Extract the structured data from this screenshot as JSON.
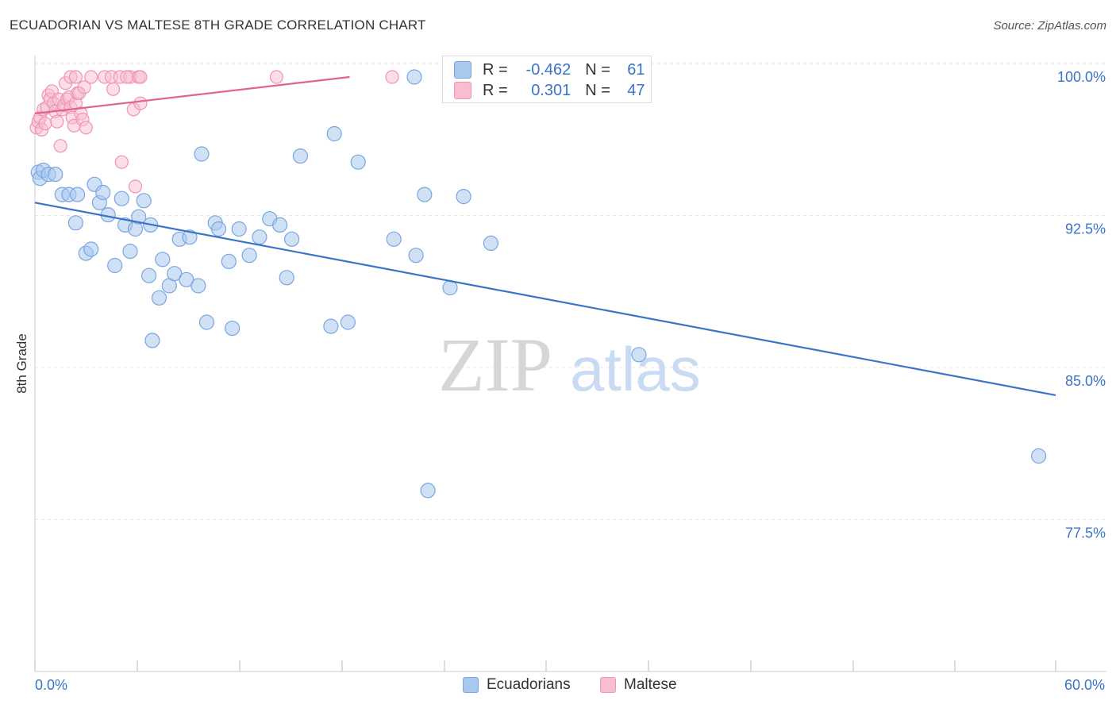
{
  "title": "ECUADORIAN VS MALTESE 8TH GRADE CORRELATION CHART",
  "source": "Source: ZipAtlas.com",
  "watermark": {
    "zip": "ZIP",
    "atlas": "atlas"
  },
  "chart_data": {
    "type": "scatter",
    "ylabel": "8th Grade",
    "xlim": [
      0,
      60
    ],
    "ylim": [
      70,
      100.8
    ],
    "x_tick_labels": [
      "0.0%",
      "60.0%"
    ],
    "y_ticks": [
      77.5,
      85.0,
      92.5,
      100.0
    ],
    "y_tick_labels": [
      "77.5%",
      "85.0%",
      "92.5%",
      "100.0%"
    ],
    "series": [
      {
        "name": "Ecuadorians",
        "color": "#3a74c8",
        "fill": "#a9c8ee",
        "stroke": "#7aa6df",
        "R": "-0.462",
        "N": "61",
        "trend": {
          "x0": 0,
          "y0": 93.8,
          "x1": 60,
          "y1": 84.3
        },
        "points": [
          [
            0.2,
            95.3
          ],
          [
            0.3,
            95.0
          ],
          [
            0.5,
            95.4
          ],
          [
            0.8,
            95.2
          ],
          [
            1.2,
            95.2
          ],
          [
            1.6,
            94.2
          ],
          [
            2.0,
            94.2
          ],
          [
            2.5,
            94.2
          ],
          [
            2.4,
            92.8
          ],
          [
            3.0,
            91.3
          ],
          [
            3.3,
            91.5
          ],
          [
            3.5,
            94.7
          ],
          [
            3.8,
            93.8
          ],
          [
            4.0,
            94.3
          ],
          [
            4.3,
            93.2
          ],
          [
            4.7,
            90.7
          ],
          [
            5.1,
            94.0
          ],
          [
            5.3,
            92.7
          ],
          [
            5.6,
            91.4
          ],
          [
            5.9,
            92.5
          ],
          [
            6.1,
            93.1
          ],
          [
            6.4,
            93.9
          ],
          [
            6.8,
            92.7
          ],
          [
            6.7,
            90.2
          ],
          [
            7.3,
            89.1
          ],
          [
            7.5,
            91.0
          ],
          [
            7.9,
            89.7
          ],
          [
            8.2,
            90.3
          ],
          [
            8.5,
            92.0
          ],
          [
            8.9,
            90.0
          ],
          [
            9.1,
            92.1
          ],
          [
            9.6,
            89.7
          ],
          [
            9.8,
            96.2
          ],
          [
            10.1,
            87.9
          ],
          [
            10.6,
            92.8
          ],
          [
            10.8,
            92.5
          ],
          [
            11.4,
            90.9
          ],
          [
            11.6,
            87.6
          ],
          [
            12.0,
            92.5
          ],
          [
            12.6,
            91.2
          ],
          [
            13.2,
            92.1
          ],
          [
            13.8,
            93.0
          ],
          [
            14.4,
            92.7
          ],
          [
            14.8,
            90.1
          ],
          [
            15.1,
            92.0
          ],
          [
            15.6,
            96.1
          ],
          [
            17.4,
            87.7
          ],
          [
            17.6,
            97.2
          ],
          [
            18.4,
            87.9
          ],
          [
            19.0,
            95.8
          ],
          [
            21.1,
            92.0
          ],
          [
            22.4,
            91.2
          ],
          [
            22.3,
            100.0
          ],
          [
            22.9,
            94.2
          ],
          [
            23.1,
            79.6
          ],
          [
            24.4,
            89.6
          ],
          [
            25.2,
            94.1
          ],
          [
            26.8,
            91.8
          ],
          [
            35.5,
            86.3
          ],
          [
            59.0,
            81.3
          ],
          [
            6.9,
            87.0
          ]
        ]
      },
      {
        "name": "Maltese",
        "color": "#e0648e",
        "fill": "#f8bdd0",
        "stroke": "#f094b3",
        "R": "0.301",
        "N": "47",
        "trend": {
          "x0": 0,
          "y0": 98.2,
          "x1": 18.5,
          "y1": 100.0
        },
        "points": [
          [
            0.1,
            97.5
          ],
          [
            0.2,
            97.8
          ],
          [
            0.3,
            98.0
          ],
          [
            0.4,
            97.4
          ],
          [
            0.5,
            98.4
          ],
          [
            0.6,
            97.7
          ],
          [
            0.7,
            98.5
          ],
          [
            0.8,
            99.1
          ],
          [
            0.9,
            98.9
          ],
          [
            1.0,
            99.3
          ],
          [
            1.1,
            98.7
          ],
          [
            1.2,
            98.3
          ],
          [
            1.3,
            97.8
          ],
          [
            1.4,
            98.9
          ],
          [
            1.5,
            96.6
          ],
          [
            1.6,
            98.4
          ],
          [
            1.7,
            98.6
          ],
          [
            1.8,
            99.7
          ],
          [
            1.9,
            98.9
          ],
          [
            2.0,
            99.0
          ],
          [
            2.1,
            98.5
          ],
          [
            2.2,
            98.0
          ],
          [
            2.3,
            97.6
          ],
          [
            2.4,
            98.7
          ],
          [
            2.5,
            99.2
          ],
          [
            2.6,
            99.2
          ],
          [
            2.7,
            98.2
          ],
          [
            2.8,
            97.9
          ],
          [
            2.9,
            99.5
          ],
          [
            3.0,
            97.5
          ],
          [
            2.1,
            100.0
          ],
          [
            2.4,
            100.0
          ],
          [
            3.3,
            100.0
          ],
          [
            4.1,
            100.0
          ],
          [
            4.6,
            99.4
          ],
          [
            4.5,
            100.0
          ],
          [
            5.0,
            100.0
          ],
          [
            5.1,
            95.8
          ],
          [
            5.6,
            100.0
          ],
          [
            5.4,
            100.0
          ],
          [
            5.8,
            98.4
          ],
          [
            5.9,
            94.6
          ],
          [
            6.1,
            100.0
          ],
          [
            6.2,
            100.0
          ],
          [
            6.2,
            98.7
          ],
          [
            14.2,
            100.0
          ],
          [
            21.0,
            100.0
          ]
        ]
      }
    ]
  }
}
